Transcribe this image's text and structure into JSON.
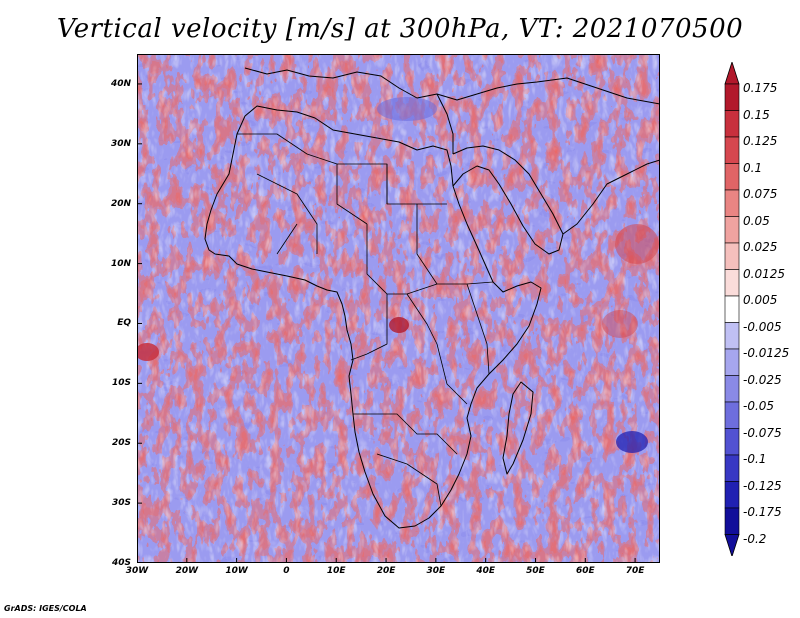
{
  "title": "Vertical velocity [m/s] at 300hPa, VT: 2021070500",
  "credit": "GrADS: IGES/COLA",
  "map": {
    "lat_range": [
      -40,
      45
    ],
    "lon_range": [
      -30,
      75
    ],
    "lat_ticks": [
      "40N",
      "30N",
      "20N",
      "10N",
      "EQ",
      "10S",
      "20S",
      "30S",
      "40S"
    ],
    "lat_values": [
      40,
      30,
      20,
      10,
      0,
      -10,
      -20,
      -30,
      -40
    ],
    "lon_ticks": [
      "30W",
      "20W",
      "10W",
      "0",
      "10E",
      "20E",
      "30E",
      "40E",
      "50E",
      "60E",
      "70E"
    ],
    "lon_values": [
      -30,
      -20,
      -10,
      0,
      10,
      20,
      30,
      40,
      50,
      60,
      70
    ],
    "background_color": "#9b9bf0"
  },
  "colorbar": {
    "labels": [
      "0.175",
      "0.15",
      "0.125",
      "0.1",
      "0.075",
      "0.05",
      "0.025",
      "0.0125",
      "0.005",
      "-0.005",
      "-0.0125",
      "-0.025",
      "-0.05",
      "-0.075",
      "-0.1",
      "-0.125",
      "-0.175",
      "-0.2"
    ],
    "colors": [
      "#b2182b",
      "#c8303d",
      "#d6474f",
      "#e06466",
      "#e98583",
      "#f0a3a0",
      "#f5c0bd",
      "#fadcda",
      "#ffffff",
      "#dcdcf8",
      "#c0c0f4",
      "#a6a6ee",
      "#8a8ae6",
      "#6e6edd",
      "#5252d2",
      "#3838c4",
      "#2020b2",
      "#120e9a"
    ],
    "max_color": "#b2182b",
    "min_color": "#120e9a"
  }
}
